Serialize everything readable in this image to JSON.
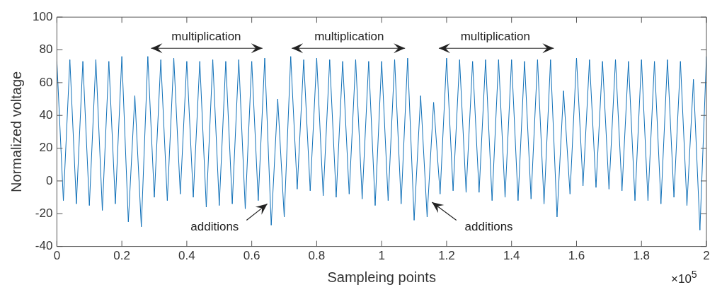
{
  "chart_data": {
    "type": "line",
    "xlabel": "Sampleing points",
    "ylabel": "Normalized voltage",
    "x": [
      0,
      0.02,
      0.04,
      0.06,
      0.08,
      0.1,
      0.12,
      0.14,
      0.16,
      0.18,
      0.2,
      0.22,
      0.24,
      0.26,
      0.28,
      0.3,
      0.32,
      0.34,
      0.36,
      0.38,
      0.4,
      0.42,
      0.44,
      0.46,
      0.48,
      0.5,
      0.52,
      0.54,
      0.56,
      0.58,
      0.6,
      0.62,
      0.64,
      0.66,
      0.68,
      0.7,
      0.72,
      0.74,
      0.76,
      0.78,
      0.8,
      0.82,
      0.84,
      0.86,
      0.88,
      0.9,
      0.92,
      0.94,
      0.96,
      0.98,
      1,
      1.02,
      1.04,
      1.06,
      1.08,
      1.1,
      1.12,
      1.14,
      1.16,
      1.18,
      1.2,
      1.22,
      1.24,
      1.26,
      1.28,
      1.3,
      1.32,
      1.34,
      1.36,
      1.38,
      1.4,
      1.42,
      1.44,
      1.46,
      1.48,
      1.5,
      1.52,
      1.54,
      1.56,
      1.58,
      1.6,
      1.62,
      1.64,
      1.66,
      1.68,
      1.7,
      1.72,
      1.74,
      1.76,
      1.78,
      1.8,
      1.82,
      1.84,
      1.86,
      1.88,
      1.9,
      1.92,
      1.94,
      1.96,
      1.98,
      2
    ],
    "series": [
      {
        "color": "#1070b8",
        "values": [
          73,
          -12,
          74,
          -14,
          73,
          -15,
          74,
          -18,
          73,
          -14,
          76,
          -25,
          52,
          -28,
          76,
          -10,
          74,
          -12,
          75,
          -8,
          73,
          -10,
          73,
          -16,
          74,
          -15,
          73,
          -14,
          74,
          -17,
          73,
          -12,
          75,
          -27,
          50,
          -22,
          76,
          -5,
          74,
          -6,
          75,
          -9,
          74,
          -10,
          73,
          -8,
          74,
          -11,
          73,
          -15,
          73,
          -12,
          74,
          -14,
          75,
          -24,
          52,
          -22,
          48,
          -8,
          75,
          -6,
          74,
          -7,
          73,
          -7,
          74,
          -12,
          74,
          -10,
          74,
          -12,
          73,
          -11,
          74,
          -14,
          74,
          -22,
          55,
          -8,
          75,
          -3,
          74,
          -4,
          73,
          -5,
          74,
          -6,
          73,
          -12,
          74,
          -12,
          73,
          -14,
          74,
          -10,
          73,
          -15,
          62,
          -30,
          76
        ]
      }
    ],
    "xlim": [
      0,
      2
    ],
    "xticks": [
      0,
      0.2,
      0.4,
      0.6,
      0.8,
      1,
      1.2,
      1.4,
      1.6,
      1.8,
      2
    ],
    "ylim": [
      -40,
      100
    ],
    "yticks": [
      -40,
      -20,
      0,
      20,
      40,
      60,
      80,
      100
    ],
    "grid": false,
    "legend": false,
    "marker": "none",
    "line_style": "solid",
    "annotations": [
      "multiplication",
      "multiplication",
      "multiplication",
      "additions",
      "additions",
      "×10$^{5}$"
    ]
  }
}
